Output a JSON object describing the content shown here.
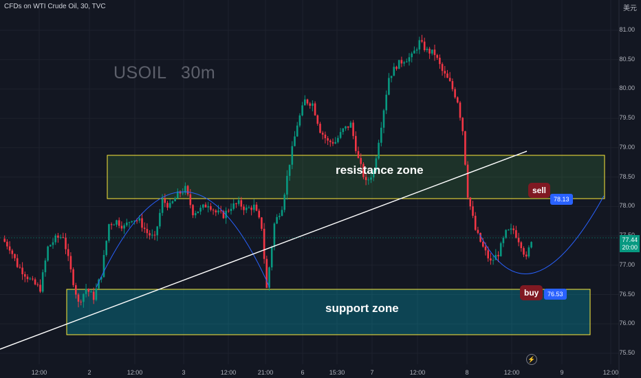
{
  "header": {
    "symbol_line": "CFDs on WTI Crude Oil, 30, TVC",
    "currency": "美元"
  },
  "watermark": "USOIL 30m",
  "zones": {
    "resistance": {
      "label": "resistance zone",
      "from": 78.15,
      "to": 78.88
    },
    "support": {
      "label": "support zone",
      "from": 75.83,
      "to": 76.62
    }
  },
  "sell": {
    "label": "sell",
    "price": "78.13"
  },
  "buy": {
    "label": "buy",
    "price": "76.53"
  },
  "last_price": {
    "value": "77.44",
    "time": "20:00"
  },
  "colors": {
    "bull": "#089981",
    "bear": "#f23645",
    "resistance": "#4caf50",
    "support": "#00bcd4",
    "zone_border": "#ffeb3b",
    "curve": "#2962ff"
  },
  "chart_data": {
    "type": "candlestick",
    "y_ticks": [
      "81.00",
      "80.50",
      "80.00",
      "79.50",
      "79.00",
      "78.50",
      "78.00",
      "77.50",
      "77.00",
      "76.50",
      "76.00",
      "75.50"
    ],
    "x_ticks": [
      "12:00",
      "2",
      "12:00",
      "3",
      "12:00",
      "21:00",
      "6",
      "15:30",
      "7",
      "12:00",
      "8",
      "12:00",
      "9",
      "12:00"
    ],
    "ylim": [
      75.3,
      81.5
    ],
    "close_path": [
      [
        0,
        77.45
      ],
      [
        3,
        77.3
      ],
      [
        6,
        77.0
      ],
      [
        9,
        76.85
      ],
      [
        12,
        76.7
      ],
      [
        15,
        76.6
      ],
      [
        18,
        77.3
      ],
      [
        21,
        77.45
      ],
      [
        24,
        77.5
      ],
      [
        27,
        76.9
      ],
      [
        30,
        76.35
      ],
      [
        33,
        76.6
      ],
      [
        36,
        76.45
      ],
      [
        39,
        76.85
      ],
      [
        42,
        77.7
      ],
      [
        45,
        77.75
      ],
      [
        48,
        77.65
      ],
      [
        51,
        77.8
      ],
      [
        54,
        77.75
      ],
      [
        57,
        77.55
      ],
      [
        60,
        77.45
      ],
      [
        63,
        78.1
      ],
      [
        66,
        78.0
      ],
      [
        69,
        78.2
      ],
      [
        72,
        78.3
      ],
      [
        75,
        77.9
      ],
      [
        78,
        77.95
      ],
      [
        81,
        78.05
      ],
      [
        84,
        77.9
      ],
      [
        87,
        77.85
      ],
      [
        90,
        78.0
      ],
      [
        93,
        78.05
      ],
      [
        96,
        77.95
      ],
      [
        99,
        78.0
      ],
      [
        102,
        77.65
      ],
      [
        104,
        76.6
      ],
      [
        107,
        77.7
      ],
      [
        110,
        78.0
      ],
      [
        113,
        78.75
      ],
      [
        116,
        79.4
      ],
      [
        119,
        79.8
      ],
      [
        122,
        79.75
      ],
      [
        125,
        79.3
      ],
      [
        128,
        79.1
      ],
      [
        131,
        79.1
      ],
      [
        134,
        79.3
      ],
      [
        137,
        79.4
      ],
      [
        140,
        78.8
      ],
      [
        143,
        78.4
      ],
      [
        146,
        78.6
      ],
      [
        149,
        79.4
      ],
      [
        152,
        80.2
      ],
      [
        155,
        80.4
      ],
      [
        158,
        80.5
      ],
      [
        161,
        80.55
      ],
      [
        164,
        80.8
      ],
      [
        167,
        80.65
      ],
      [
        170,
        80.6
      ],
      [
        173,
        80.3
      ],
      [
        176,
        80.1
      ],
      [
        179,
        79.8
      ],
      [
        181,
        79.3
      ],
      [
        183,
        78.2
      ],
      [
        186,
        77.6
      ],
      [
        189,
        77.3
      ],
      [
        192,
        77.05
      ],
      [
        195,
        77.2
      ],
      [
        198,
        77.55
      ],
      [
        201,
        77.6
      ],
      [
        204,
        77.35
      ],
      [
        206,
        77.1
      ],
      [
        208,
        77.44
      ]
    ]
  }
}
